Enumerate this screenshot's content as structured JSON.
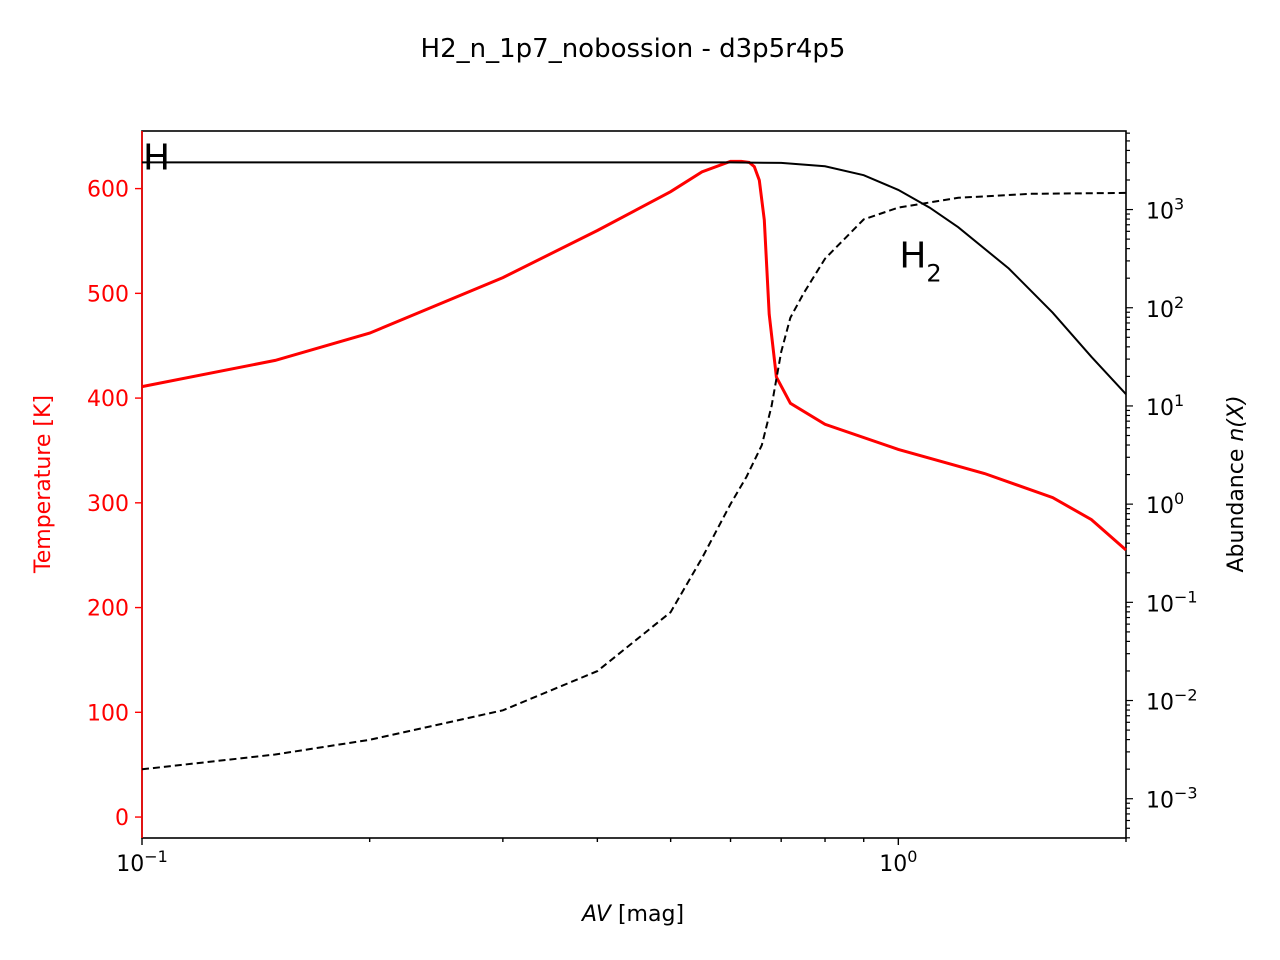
{
  "chart_data": {
    "type": "line",
    "title": "H2_n_1p7_nobossion - d3p5r4p5",
    "xlabel_italic": "AV",
    "xlabel_rest": " [mag]",
    "ylabel_left": "Temperature [K]",
    "ylabel_right_prefix": "Abundance ",
    "ylabel_right_italic": "n(X)",
    "x_scale": "log",
    "x_range": [
      0.1,
      2.0
    ],
    "x_ticks": [
      {
        "base": "10",
        "exp": "−1",
        "value": 0.1
      },
      {
        "base": "10",
        "exp": "0",
        "value": 1.0
      }
    ],
    "y_left_range": [
      -20,
      655
    ],
    "y_left_ticks": [
      "0",
      "100",
      "200",
      "300",
      "400",
      "500",
      "600"
    ],
    "y_left_tick_values": [
      0,
      100,
      200,
      300,
      400,
      500,
      600
    ],
    "y_right_scale": "log",
    "y_right_range_log10": [
      -3.4,
      3.8
    ],
    "y_right_ticks": [
      {
        "base": "10",
        "exp": "−3",
        "log": -3
      },
      {
        "base": "10",
        "exp": "−2",
        "log": -2
      },
      {
        "base": "10",
        "exp": "−1",
        "log": -1
      },
      {
        "base": "10",
        "exp": "0",
        "log": 0
      },
      {
        "base": "10",
        "exp": "1",
        "log": 1
      },
      {
        "base": "10",
        "exp": "2",
        "log": 2
      },
      {
        "base": "10",
        "exp": "3",
        "log": 3
      }
    ],
    "annotations": [
      {
        "text": "H",
        "sub": "",
        "av": 0.1,
        "log_n": 3.55
      },
      {
        "text": "H",
        "sub": "2",
        "av": 1.0,
        "log_n": 2.55
      }
    ],
    "colors": {
      "temperature": "#ff0000",
      "abundance": "#000000",
      "left_axis": "#ff0000"
    },
    "series": [
      {
        "name": "Temperature",
        "axis": "left",
        "style": "solid",
        "av": [
          0.1,
          0.15,
          0.2,
          0.3,
          0.4,
          0.5,
          0.55,
          0.6,
          0.62,
          0.635,
          0.645,
          0.655,
          0.665,
          0.675,
          0.69,
          0.72,
          0.8,
          1.0,
          1.3,
          1.6,
          1.8,
          2.0
        ],
        "values": [
          411,
          436,
          462,
          515,
          560,
          597,
          616,
          626,
          626,
          625,
          621,
          608,
          570,
          480,
          420,
          395,
          375,
          351,
          328,
          305,
          284,
          255
        ]
      },
      {
        "name": "H",
        "axis": "right",
        "style": "solid",
        "av": [
          0.1,
          0.5,
          0.6,
          0.7,
          0.8,
          0.9,
          1.0,
          1.1,
          1.2,
          1.4,
          1.6,
          1.8,
          2.0
        ],
        "log_n": [
          3.48,
          3.48,
          3.48,
          3.475,
          3.44,
          3.35,
          3.2,
          3.02,
          2.82,
          2.4,
          1.95,
          1.5,
          1.12
        ]
      },
      {
        "name": "H2",
        "axis": "right",
        "style": "dashed",
        "av": [
          0.1,
          0.15,
          0.2,
          0.3,
          0.4,
          0.5,
          0.55,
          0.6,
          0.63,
          0.66,
          0.68,
          0.7,
          0.72,
          0.75,
          0.8,
          0.9,
          1.0,
          1.2,
          1.5,
          2.0
        ],
        "log_n": [
          -2.7,
          -2.55,
          -2.4,
          -2.1,
          -1.7,
          -1.1,
          -0.55,
          0.0,
          0.28,
          0.6,
          1.0,
          1.55,
          1.9,
          2.15,
          2.5,
          2.9,
          3.02,
          3.12,
          3.16,
          3.17
        ]
      }
    ]
  }
}
